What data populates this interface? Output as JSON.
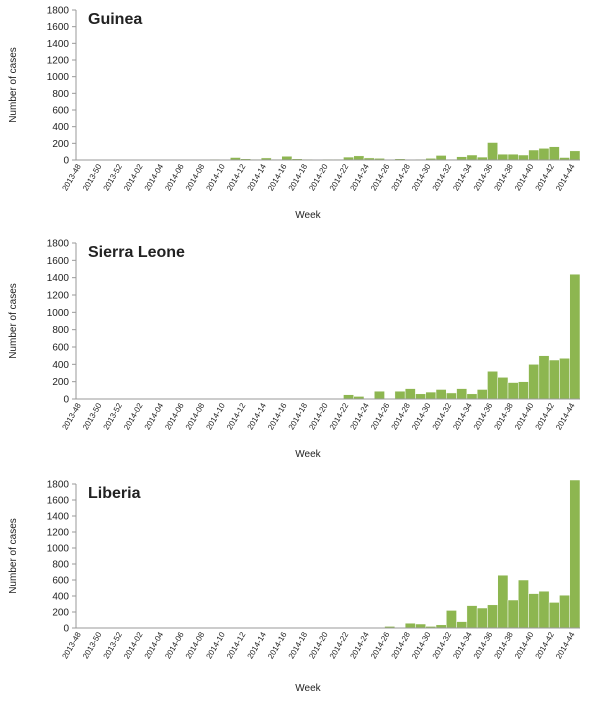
{
  "chart_data": [
    {
      "type": "bar",
      "title": "Guinea",
      "x_label": "Week",
      "y_label": "Number of cases",
      "color": "#8db650",
      "categories": [
        "2013-48",
        null,
        "2013-50",
        null,
        "2013-52",
        null,
        "2014-02",
        null,
        "2014-04",
        null,
        "2014-06",
        null,
        "2014-08",
        null,
        "2014-10",
        null,
        "2014-12",
        null,
        "2014-14",
        null,
        "2014-16",
        null,
        "2014-18",
        null,
        "2014-20",
        null,
        "2014-22",
        null,
        "2014-24",
        null,
        "2014-26",
        null,
        "2014-28",
        null,
        "2014-30",
        null,
        "2014-32",
        null,
        "2014-34",
        null,
        "2014-36",
        null,
        "2014-38",
        null,
        "2014-40",
        null,
        "2014-42",
        null,
        "2014-44"
      ],
      "values": [
        0,
        0,
        0,
        0,
        0,
        0,
        0,
        0,
        0,
        0,
        0,
        0,
        0,
        10,
        5,
        30,
        15,
        10,
        25,
        10,
        45,
        15,
        10,
        5,
        10,
        10,
        35,
        50,
        25,
        20,
        5,
        15,
        5,
        10,
        20,
        55,
        10,
        40,
        60,
        35,
        210,
        70,
        70,
        60,
        120,
        140,
        160,
        30,
        110
      ],
      "ylim": [
        0,
        1800
      ],
      "yticks": [
        0,
        200,
        400,
        600,
        800,
        1000,
        1200,
        1400,
        1600,
        1800
      ]
    },
    {
      "type": "bar",
      "title": "Sierra Leone",
      "x_label": "Week",
      "y_label": "Number of cases",
      "color": "#8db650",
      "categories": [
        "2013-48",
        null,
        "2013-50",
        null,
        "2013-52",
        null,
        "2014-02",
        null,
        "2014-04",
        null,
        "2014-06",
        null,
        "2014-08",
        null,
        "2014-10",
        null,
        "2014-12",
        null,
        "2014-14",
        null,
        "2014-16",
        null,
        "2014-18",
        null,
        "2014-20",
        null,
        "2014-22",
        null,
        "2014-24",
        null,
        "2014-26",
        null,
        "2014-28",
        null,
        "2014-30",
        null,
        "2014-32",
        null,
        "2014-34",
        null,
        "2014-36",
        null,
        "2014-38",
        null,
        "2014-40",
        null,
        "2014-42",
        null,
        "2014-44"
      ],
      "values": [
        0,
        0,
        0,
        0,
        0,
        0,
        0,
        0,
        0,
        0,
        0,
        0,
        0,
        0,
        0,
        0,
        0,
        0,
        0,
        0,
        0,
        0,
        0,
        0,
        0,
        0,
        50,
        30,
        0,
        90,
        0,
        90,
        120,
        60,
        80,
        110,
        70,
        120,
        60,
        110,
        320,
        250,
        190,
        200,
        400,
        500,
        450,
        470,
        1440
      ],
      "ylim": [
        0,
        1800
      ],
      "yticks": [
        0,
        200,
        400,
        600,
        800,
        1000,
        1200,
        1400,
        1600,
        1800
      ]
    },
    {
      "type": "bar",
      "title": "Liberia",
      "x_label": "Week",
      "y_label": "Number of cases",
      "color": "#8db650",
      "categories": [
        "2013-48",
        null,
        "2013-50",
        null,
        "2013-52",
        null,
        "2014-02",
        null,
        "2014-04",
        null,
        "2014-06",
        null,
        "2014-08",
        null,
        "2014-10",
        null,
        "2014-12",
        null,
        "2014-14",
        null,
        "2014-16",
        null,
        "2014-18",
        null,
        "2014-20",
        null,
        "2014-22",
        null,
        "2014-24",
        null,
        "2014-26",
        null,
        "2014-28",
        null,
        "2014-30",
        null,
        "2014-32",
        null,
        "2014-34",
        null,
        "2014-36",
        null,
        "2014-38",
        null,
        "2014-40",
        null,
        "2014-42",
        null,
        "2014-44"
      ],
      "values": [
        0,
        0,
        0,
        0,
        0,
        0,
        0,
        0,
        0,
        0,
        0,
        0,
        0,
        0,
        0,
        0,
        0,
        0,
        0,
        0,
        0,
        0,
        0,
        0,
        0,
        0,
        0,
        0,
        0,
        0,
        20,
        0,
        60,
        50,
        20,
        40,
        220,
        80,
        280,
        250,
        290,
        660,
        350,
        600,
        430,
        460,
        320,
        410,
        1850
      ],
      "ylim": [
        0,
        1800
      ],
      "yticks": [
        0,
        200,
        400,
        600,
        800,
        1000,
        1200,
        1400,
        1600,
        1800
      ]
    }
  ]
}
